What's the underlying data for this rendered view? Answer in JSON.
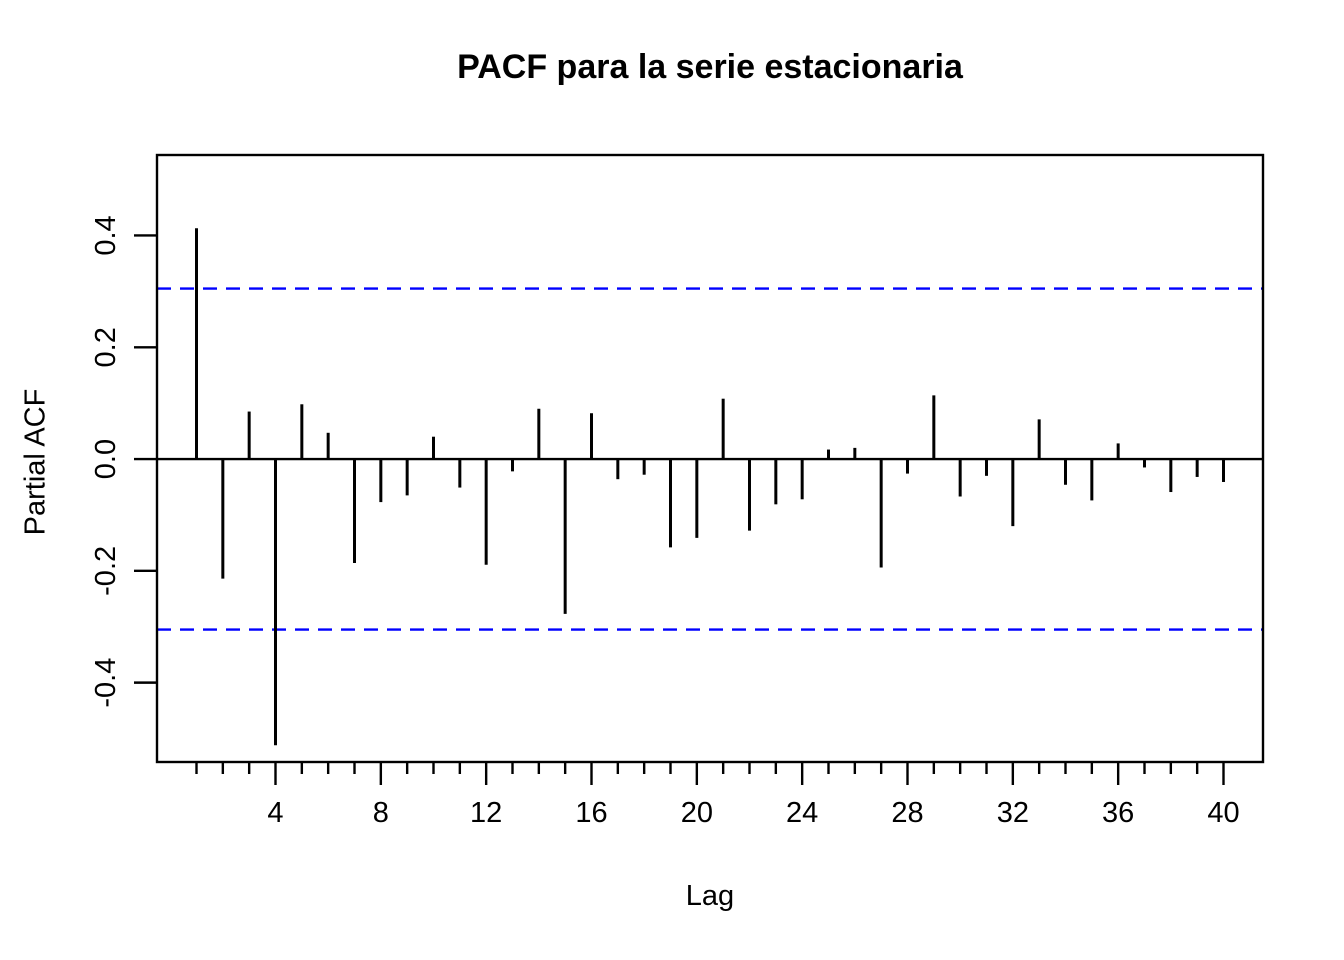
{
  "chart_data": {
    "type": "bar",
    "subtype": "pacf-stem-plot",
    "title": "PACF para la serie estacionaria",
    "xlabel": "Lag",
    "ylabel": "Partial ACF",
    "x": [
      1,
      2,
      3,
      4,
      5,
      6,
      7,
      8,
      9,
      10,
      11,
      12,
      13,
      14,
      15,
      16,
      17,
      18,
      19,
      20,
      21,
      22,
      23,
      24,
      25,
      26,
      27,
      28,
      29,
      30,
      31,
      32,
      33,
      34,
      35,
      36,
      37,
      38,
      39,
      40
    ],
    "values": [
      0.413,
      -0.214,
      0.085,
      -0.512,
      0.098,
      0.047,
      -0.186,
      -0.077,
      -0.065,
      0.04,
      -0.051,
      -0.189,
      -0.022,
      0.09,
      -0.277,
      0.082,
      -0.036,
      -0.028,
      -0.158,
      -0.141,
      0.108,
      -0.128,
      -0.081,
      -0.072,
      0.017,
      0.02,
      -0.194,
      -0.026,
      0.114,
      -0.067,
      -0.03,
      -0.12,
      0.071,
      -0.046,
      -0.074,
      0.028,
      -0.015,
      -0.059,
      -0.032,
      -0.041
    ],
    "confidence_band": 0.305,
    "confidence_style": "dashed",
    "zero_line": 0,
    "xlim": [
      -0.5,
      41.5
    ],
    "ylim": [
      -0.542,
      0.544
    ],
    "xticks_labeled": [
      4,
      8,
      12,
      16,
      20,
      24,
      28,
      32,
      36,
      40
    ],
    "xtick_labels": [
      "4",
      "8",
      "12",
      "16",
      "20",
      "24",
      "28",
      "32",
      "36",
      "40"
    ],
    "xticks_minor_every": 1,
    "yticks": [
      -0.4,
      -0.2,
      0.0,
      0.2,
      0.4
    ],
    "ytick_labels": [
      "-0.4",
      "-0.2",
      "0.0",
      "0.2",
      "0.4"
    ],
    "ytick_labels_rotated": true,
    "grid": false,
    "legend": false,
    "colors": {
      "stem": "#000000",
      "confidence": "#0000ff",
      "axis": "#000000",
      "background": "#ffffff",
      "text": "#000000"
    }
  }
}
